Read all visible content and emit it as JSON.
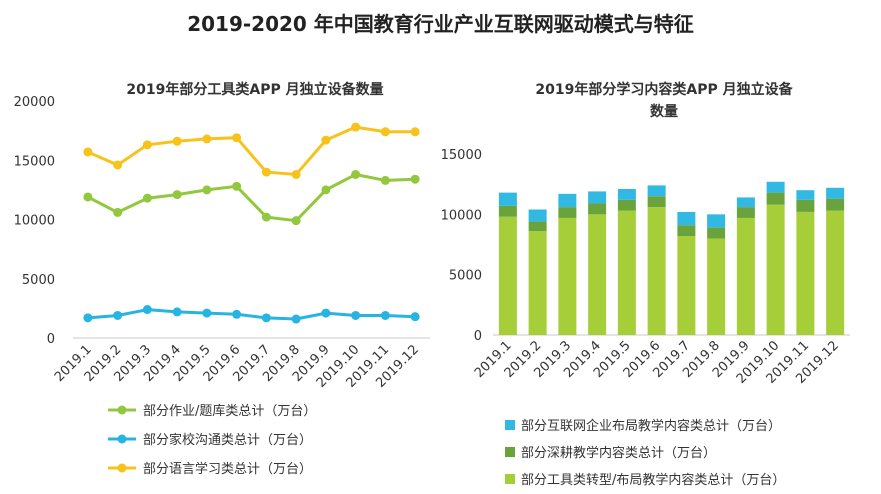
{
  "title": "2019-2020 年中国教育行业产业互联网驱动模式与特征",
  "chart_data": [
    {
      "type": "line",
      "title": "2019年部分工具类APP 月独立设备数量",
      "categories": [
        "2019.1",
        "2019.2",
        "2019.3",
        "2019.4",
        "2019.5",
        "2019.6",
        "2019.7",
        "2019.8",
        "2019.9",
        "2019.10",
        "2019.11",
        "2019.12"
      ],
      "ylim": [
        0,
        20000
      ],
      "yticks": [
        "0",
        "5000",
        "10000",
        "15000",
        "20000"
      ],
      "series": [
        {
          "name": "部分作业/题库类总计（万台）",
          "color": "#92c83e",
          "values": [
            11900,
            10600,
            11800,
            12100,
            12500,
            12800,
            10200,
            9900,
            12500,
            13800,
            13300,
            13400
          ]
        },
        {
          "name": "部分家校沟通类总计（万台）",
          "color": "#27b4e3",
          "values": [
            1700,
            1900,
            2400,
            2200,
            2100,
            2000,
            1700,
            1600,
            2100,
            1900,
            1900,
            1800
          ]
        },
        {
          "name": "部分语言学习类总计（万台）",
          "color": "#f7c31b",
          "values": [
            15700,
            14600,
            16300,
            16600,
            16800,
            16900,
            14000,
            13800,
            16700,
            17800,
            17400,
            17400
          ]
        }
      ]
    },
    {
      "type": "bar",
      "stacked": true,
      "title_lines": [
        "2019年部分学习内容类APP 月独立设备",
        "数量"
      ],
      "categories": [
        "2019.1",
        "2019.2",
        "2019.3",
        "2019.4",
        "2019.5",
        "2019.6",
        "2019.7",
        "2019.8",
        "2019.9",
        "2019.10",
        "2019.11",
        "2019.12"
      ],
      "ylim": [
        0,
        15000
      ],
      "yticks": [
        "0",
        "5000",
        "10000",
        "15000"
      ],
      "series": [
        {
          "name": "部分工具类转型/布局教学内容类总计（万台）",
          "color": "#a6ce39",
          "values": [
            9800,
            8600,
            9700,
            10000,
            10300,
            10600,
            8200,
            8000,
            9700,
            10800,
            10200,
            10300
          ]
        },
        {
          "name": "部分深耕教学内容类总计（万台）",
          "color": "#6aa33b",
          "values": [
            900,
            800,
            900,
            900,
            900,
            900,
            900,
            900,
            900,
            1000,
            1000,
            1000
          ]
        },
        {
          "name": "部分互联网企业布局教学内容类总计（万台）",
          "color": "#32b9e3",
          "values": [
            1100,
            1000,
            1100,
            1000,
            900,
            900,
            1100,
            1100,
            800,
            900,
            800,
            900
          ]
        }
      ],
      "legend_order": [
        2,
        1,
        0
      ]
    }
  ]
}
